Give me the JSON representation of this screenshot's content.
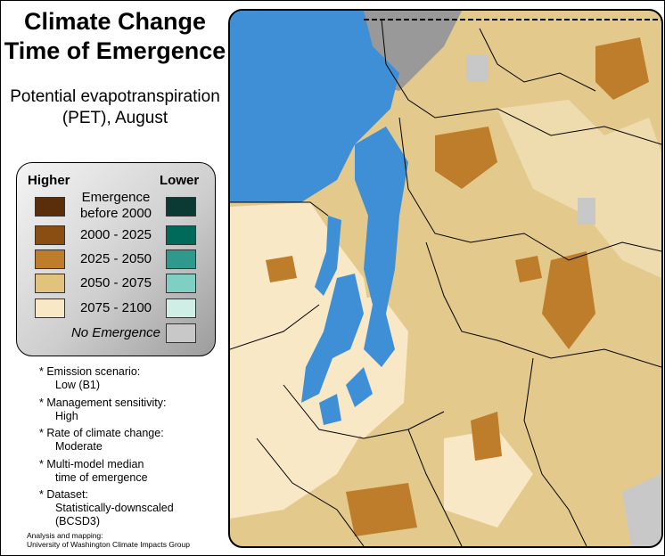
{
  "title_line1": "Climate Change",
  "title_line2": "Time of Emergence",
  "subtitle_line1": "Potential evapotranspiration",
  "subtitle_line2": "(PET), August",
  "legend": {
    "higher": "Higher",
    "lower": "Lower",
    "rows": [
      {
        "label1": "Emergence",
        "label2": "before 2000",
        "color_high": "#5a2e0b",
        "color_low": "#0b3a35"
      },
      {
        "label1": "2000 - 2025",
        "label2": "",
        "color_high": "#8a4d12",
        "color_low": "#006a5a"
      },
      {
        "label1": "2025 - 2050",
        "label2": "",
        "color_high": "#bd7d2b",
        "color_low": "#2f9a8c"
      },
      {
        "label1": "2050 - 2075",
        "label2": "",
        "color_high": "#e1c37e",
        "color_low": "#7fd0c3"
      },
      {
        "label1": "2075 - 2100",
        "label2": "",
        "color_high": "#f8e8c6",
        "color_low": "#cfeee6"
      }
    ],
    "no_emergence": "No Emergence",
    "no_emergence_color": "#c8c8c8"
  },
  "notes": [
    {
      "line1": "Emission scenario:",
      "line2": "Low (B1)",
      "line3": ""
    },
    {
      "line1": "Management sensitivity:",
      "line2": "High",
      "line3": ""
    },
    {
      "line1": "Rate of climate change:",
      "line2": "Moderate",
      "line3": ""
    },
    {
      "line1": "Multi-model median",
      "line2": "time of emergence",
      "line3": ""
    },
    {
      "line1": "Dataset:",
      "line2": "Statistically-downscaled",
      "line3": "(BCSD3)"
    }
  ],
  "credit_line1": "Analysis and mapping:",
  "credit_line2": "University of Washington Climate Impacts Group",
  "colors": {
    "water": "#3f8fd6",
    "base": "#e3c98b",
    "light": "#f8e8c6",
    "mid": "#bd7d2b",
    "gray": "#999999",
    "nodata": "#c8c8c8"
  }
}
